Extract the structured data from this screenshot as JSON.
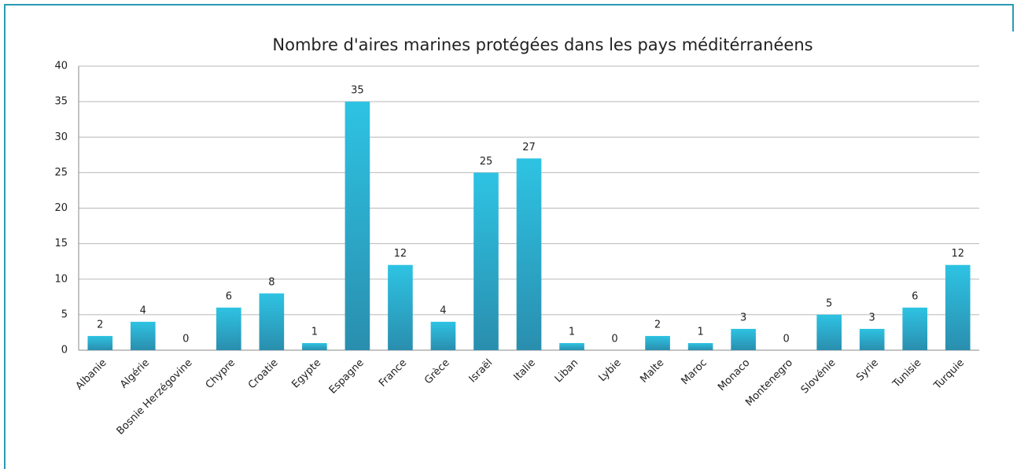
{
  "chart_data": {
    "type": "bar",
    "title": "Nombre d'aires marines protégées dans les pays méditérranéens",
    "categories": [
      "Albanie",
      "Algérie",
      "Bosnie Herzégovine",
      "Chypre",
      "Croatie",
      "Egypte",
      "Espagne",
      "France",
      "Grèce",
      "Israël",
      "Italie",
      "Liban",
      "Lybie",
      "Malte",
      "Maroc",
      "Monaco",
      "Montenegro",
      "Slovénie",
      "Syrie",
      "Tunisie",
      "Turquie"
    ],
    "values": [
      2,
      4,
      0,
      6,
      8,
      1,
      35,
      12,
      4,
      25,
      27,
      1,
      0,
      2,
      1,
      3,
      0,
      5,
      3,
      6,
      12
    ],
    "color": "#2ec3e3",
    "ylim": [
      0,
      40
    ],
    "yticks": [
      0,
      5,
      10,
      15,
      20,
      25,
      30,
      35,
      40
    ],
    "grid": true
  }
}
